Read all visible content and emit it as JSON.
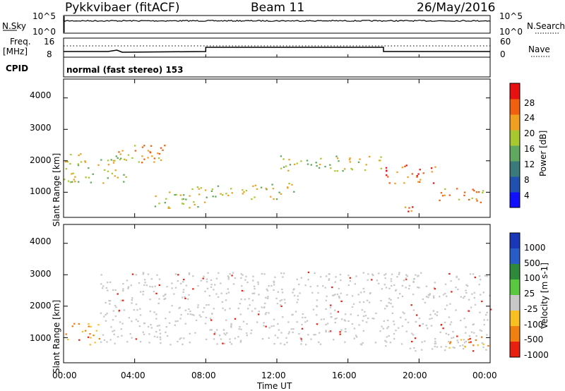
{
  "header": {
    "station": "Pykkvibaer (fitACF)",
    "beam": "Beam 11",
    "date": "26/May/2016"
  },
  "noise_panel": {
    "left_label": "N.Sky",
    "right_label": "N.Search",
    "left_ticks": [
      "10^5",
      "10^0"
    ],
    "right_ticks": [
      "10^5",
      "10^0"
    ]
  },
  "freq_panel": {
    "left_label_1": "Freq.",
    "left_label_2": "[MHz]",
    "right_label": "Nave",
    "left_ticks": [
      "16",
      "8"
    ],
    "right_ticks": [
      "60",
      "0"
    ]
  },
  "cpid": {
    "label": "CPID",
    "value": "normal (fast stereo) 153"
  },
  "x_axis": {
    "label": "Time UT",
    "ticks": [
      "00:00",
      "04:00",
      "08:00",
      "12:00",
      "16:00",
      "20:00",
      "00:00"
    ]
  },
  "chart_data": [
    {
      "type": "heatmap",
      "title": "",
      "xlabel": "Time UT",
      "ylabel": "Slant Range [km]",
      "xlim": [
        0,
        24
      ],
      "ylim": [
        200,
        4600
      ],
      "y_ticks": [
        "1000",
        "2000",
        "3000",
        "4000"
      ],
      "colorbar_label": "Power [dB]",
      "colorbar_ticks": [
        "4",
        "8",
        "12",
        "16",
        "20",
        "24",
        "28"
      ],
      "colors": [
        "#1010ff",
        "#2050b0",
        "#3a7a7a",
        "#60a860",
        "#a8c830",
        "#f0a020",
        "#f06010",
        "#e81010"
      ],
      "echo_bands": [
        {
          "t_start": 0,
          "t_end": 3.5,
          "range_low": 1300,
          "range_high": 2300,
          "power_db": 20
        },
        {
          "t_start": 3,
          "t_end": 6,
          "range_low": 1900,
          "range_high": 2600,
          "power_db": 22
        },
        {
          "t_start": 5,
          "t_end": 8,
          "range_low": 500,
          "range_high": 1200,
          "power_db": 18
        },
        {
          "t_start": 8,
          "t_end": 13,
          "range_low": 800,
          "range_high": 1300,
          "power_db": 20
        },
        {
          "t_start": 12,
          "t_end": 18,
          "range_low": 1700,
          "range_high": 2200,
          "power_db": 20
        },
        {
          "t_start": 18,
          "t_end": 21,
          "range_low": 1300,
          "range_high": 1900,
          "power_db": 26
        },
        {
          "t_start": 19,
          "t_end": 20.5,
          "range_low": 400,
          "range_high": 650,
          "power_db": 28
        },
        {
          "t_start": 21,
          "t_end": 24,
          "range_low": 700,
          "range_high": 1200,
          "power_db": 22
        }
      ]
    },
    {
      "type": "heatmap",
      "title": "",
      "xlabel": "Time UT",
      "ylabel": "Slant Range [km]",
      "xlim": [
        0,
        24
      ],
      "ylim": [
        200,
        4600
      ],
      "y_ticks": [
        "1000",
        "2000",
        "3000",
        "4000"
      ],
      "colorbar_label": "Velocity [m s-1]",
      "colorbar_ticks": [
        "1000",
        "500",
        "100",
        "25",
        "-25",
        "-100",
        "-500",
        "-1000"
      ],
      "colors": [
        "#1838b8",
        "#2a5cc8",
        "#2e8a3a",
        "#58c840",
        "#c8c8c8",
        "#f8c020",
        "#f08010",
        "#e82010"
      ],
      "echo_bands": [
        {
          "t_start": 0,
          "t_end": 2,
          "range_low": 800,
          "range_high": 1500,
          "velocity": -300
        },
        {
          "t_start": 2,
          "t_end": 18,
          "range_low": 800,
          "range_high": 3100,
          "velocity": 0
        },
        {
          "t_start": 18,
          "t_end": 24,
          "range_low": 600,
          "range_high": 3100,
          "velocity": 0
        },
        {
          "t_start": 21.5,
          "t_end": 24,
          "range_low": 600,
          "range_high": 1100,
          "velocity": -200
        }
      ]
    }
  ]
}
